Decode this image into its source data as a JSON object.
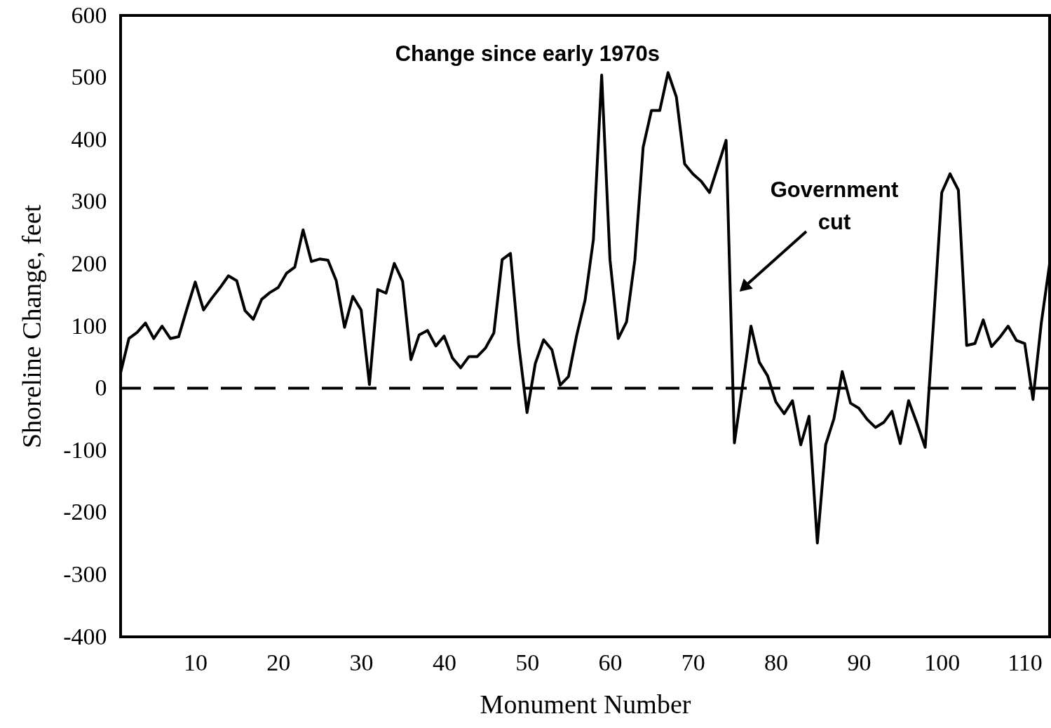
{
  "chart_data": {
    "type": "line",
    "xlabel": "Monument Number",
    "ylabel": "Shoreline Change, feet",
    "x": [
      1,
      2,
      3,
      4,
      5,
      6,
      7,
      8,
      9,
      10,
      11,
      12,
      13,
      14,
      15,
      16,
      17,
      18,
      19,
      20,
      21,
      22,
      23,
      24,
      25,
      26,
      27,
      28,
      29,
      30,
      31,
      32,
      33,
      34,
      35,
      36,
      37,
      38,
      39,
      40,
      41,
      42,
      43,
      44,
      45,
      46,
      47,
      48,
      49,
      50,
      51,
      52,
      53,
      54,
      55,
      56,
      57,
      58,
      59,
      60,
      61,
      62,
      63,
      64,
      65,
      66,
      67,
      68,
      69,
      70,
      71,
      72,
      73,
      74,
      75,
      76,
      77,
      78,
      79,
      80,
      81,
      82,
      83,
      84,
      85,
      86,
      87,
      88,
      89,
      90,
      91,
      92,
      93,
      94,
      95,
      96,
      97,
      98,
      99,
      100,
      101,
      102,
      103,
      104,
      105,
      106,
      107,
      108,
      109,
      110,
      111,
      112,
      113
    ],
    "series": [
      {
        "color": "#000000",
        "values": [
          25,
          80,
          90,
          105,
          80,
          100,
          80,
          83,
          128,
          171,
          126,
          145,
          162,
          181,
          173,
          125,
          111,
          143,
          154,
          162,
          185,
          195,
          255,
          204,
          208,
          206,
          173,
          98,
          148,
          126,
          6,
          159,
          153,
          201,
          172,
          46,
          86,
          93,
          68,
          84,
          49,
          33,
          51,
          51,
          65,
          89,
          207,
          217,
          70,
          -39,
          40,
          78,
          62,
          5,
          19,
          86,
          142,
          239,
          504,
          207,
          80,
          107,
          207,
          388,
          447,
          447,
          508,
          469,
          361,
          345,
          333,
          315,
          357,
          399,
          -88,
          6,
          100,
          42,
          20,
          -22,
          -41,
          -20,
          -91,
          -45,
          -249,
          -91,
          -49,
          27,
          -24,
          -32,
          -50,
          -63,
          -55,
          -37,
          -89,
          -20,
          -56,
          -95,
          105,
          315,
          345,
          319,
          69,
          72,
          110,
          67,
          82,
          100,
          77,
          72,
          -18,
          105,
          200
        ]
      }
    ],
    "xlim": [
      1,
      113
    ],
    "ylim": [
      -400,
      600
    ],
    "xticks": [
      10,
      20,
      30,
      40,
      50,
      60,
      70,
      80,
      90,
      100,
      110
    ],
    "yticks": [
      -400,
      -300,
      -200,
      -100,
      0,
      100,
      200,
      300,
      400,
      500,
      600
    ],
    "ref_lines": [
      {
        "axis": "y",
        "value": 0,
        "color": "#000000",
        "line_style": "dashed"
      }
    ],
    "line_style": "solid",
    "annotations": [
      "Change since early 1970s",
      "Government cut"
    ]
  }
}
